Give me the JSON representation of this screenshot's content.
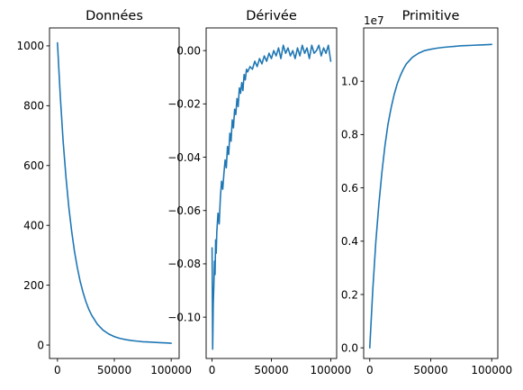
{
  "chart_data": [
    {
      "type": "line",
      "title": "Données",
      "xlabel": "",
      "ylabel": "",
      "xlim": [
        -7000,
        107000
      ],
      "ylim": [
        -45,
        1060
      ],
      "xticks": [
        0,
        50000,
        100000
      ],
      "xtick_labels": [
        "0",
        "50000",
        "100000"
      ],
      "yticks": [
        0,
        200,
        400,
        600,
        800,
        1000
      ],
      "ytick_labels": [
        "0",
        "200",
        "400",
        "600",
        "800",
        "1000"
      ],
      "offset_label": "",
      "grid": false,
      "series": [
        {
          "color": "#1f77b4",
          "x": [
            0,
            2500,
            5000,
            7500,
            10000,
            12500,
            15000,
            17500,
            20000,
            22500,
            25000,
            27500,
            30000,
            35000,
            40000,
            45000,
            50000,
            55000,
            60000,
            65000,
            70000,
            75000,
            80000,
            85000,
            90000,
            95000,
            100000
          ],
          "y": [
            1010,
            830,
            680,
            560,
            460,
            380,
            312,
            258,
            212,
            176,
            145,
            120,
            100,
            70,
            50,
            37,
            28,
            22,
            18,
            15,
            13,
            11,
            10,
            9,
            8,
            7,
            6
          ]
        }
      ]
    },
    {
      "type": "line",
      "title": "Dérivée",
      "xlabel": "",
      "ylabel": "",
      "xlim": [
        -5000,
        105000
      ],
      "ylim": [
        -0.1155,
        0.0085
      ],
      "xticks": [
        0,
        50000,
        100000
      ],
      "xtick_labels": [
        "0",
        "50000",
        "100000"
      ],
      "yticks": [
        -0.1,
        -0.08,
        -0.06,
        -0.04,
        -0.02,
        0.0
      ],
      "ytick_labels": [
        "−0.10",
        "−0.08",
        "−0.06",
        "−0.04",
        "−0.02",
        "0.00"
      ],
      "offset_label": "",
      "grid": false,
      "series": [
        {
          "color": "#1f77b4",
          "x": [
            0,
            500,
            1000,
            1500,
            2000,
            2500,
            3000,
            3500,
            4000,
            5000,
            6000,
            7000,
            8000,
            9000,
            10000,
            11000,
            12000,
            13000,
            14000,
            15000,
            16000,
            17000,
            18000,
            19000,
            20000,
            21000,
            22000,
            23000,
            24000,
            25000,
            26000,
            27000,
            28000,
            29000,
            30000,
            32000,
            34000,
            36000,
            38000,
            40000,
            42000,
            44000,
            46000,
            48000,
            50000,
            52000,
            54000,
            56000,
            58000,
            60000,
            62000,
            64000,
            66000,
            68000,
            70000,
            72000,
            74000,
            76000,
            78000,
            80000,
            82000,
            84000,
            86000,
            88000,
            90000,
            92000,
            94000,
            96000,
            98000,
            100000
          ],
          "y": [
            -0.074,
            -0.112,
            -0.095,
            -0.088,
            -0.079,
            -0.084,
            -0.071,
            -0.076,
            -0.068,
            -0.061,
            -0.065,
            -0.055,
            -0.049,
            -0.052,
            -0.046,
            -0.041,
            -0.044,
            -0.036,
            -0.039,
            -0.031,
            -0.034,
            -0.026,
            -0.029,
            -0.022,
            -0.024,
            -0.018,
            -0.021,
            -0.014,
            -0.016,
            -0.012,
            -0.015,
            -0.009,
            -0.011,
            -0.007,
            -0.008,
            -0.006,
            -0.007,
            -0.004,
            -0.006,
            -0.003,
            -0.005,
            -0.002,
            -0.004,
            -0.001,
            -0.003,
            0.0,
            -0.002,
            0.001,
            -0.003,
            0.002,
            -0.001,
            0.001,
            -0.002,
            0.0,
            -0.003,
            0.001,
            -0.002,
            0.002,
            -0.001,
            0.001,
            -0.003,
            0.002,
            -0.001,
            0.0,
            0.002,
            -0.002,
            0.001,
            -0.001,
            0.002,
            -0.004
          ]
        }
      ]
    },
    {
      "type": "line",
      "title": "Primitive",
      "xlabel": "",
      "ylabel": "",
      "xlim": [
        -5000,
        105000
      ],
      "ylim": [
        -0.04,
        1.2
      ],
      "xticks": [
        0,
        50000,
        100000
      ],
      "xtick_labels": [
        "0",
        "50000",
        "100000"
      ],
      "yticks": [
        0.0,
        0.2,
        0.4,
        0.6,
        0.8,
        1.0
      ],
      "ytick_labels": [
        "0.0",
        "0.2",
        "0.4",
        "0.6",
        "0.8",
        "1.0"
      ],
      "offset_label": "1e7",
      "grid": false,
      "series": [
        {
          "color": "#1f77b4",
          "x": [
            0,
            2500,
            5000,
            7500,
            10000,
            12500,
            15000,
            17500,
            20000,
            22500,
            25000,
            27500,
            30000,
            35000,
            40000,
            45000,
            50000,
            55000,
            60000,
            65000,
            70000,
            75000,
            80000,
            85000,
            90000,
            95000,
            100000
          ],
          "y": [
            0.0,
            0.22,
            0.4,
            0.54,
            0.66,
            0.76,
            0.84,
            0.9,
            0.95,
            0.99,
            1.02,
            1.045,
            1.065,
            1.09,
            1.105,
            1.115,
            1.12,
            1.124,
            1.127,
            1.129,
            1.131,
            1.133,
            1.134,
            1.135,
            1.136,
            1.137,
            1.138
          ]
        }
      ]
    }
  ]
}
